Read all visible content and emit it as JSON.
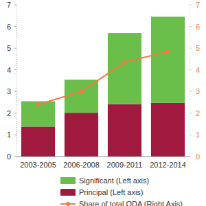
{
  "chart_data": {
    "type": "bar",
    "stacked": true,
    "legend": "bottom",
    "grid": false,
    "categories": [
      "2003-2005",
      "2006-2008",
      "2009-2011",
      "2012-2014"
    ],
    "ylim": [
      0,
      7
    ],
    "yticks": [
      0,
      1,
      2,
      3,
      4,
      5,
      6,
      7
    ],
    "y2lim": [
      0,
      7
    ],
    "y2ticks": [
      0,
      1,
      2,
      3,
      4,
      5,
      6,
      7
    ],
    "series": [
      {
        "name": "Principal (Left axis)",
        "color": "#a0193f",
        "values": [
          1.38,
          2.02,
          2.42,
          2.48
        ]
      },
      {
        "name": "Significant (Left axis)",
        "color": "#6abf4b",
        "values": [
          1.17,
          1.53,
          3.28,
          3.97
        ]
      },
      {
        "name": "Share of total ODA (Right Axis)",
        "color": "#f07c40",
        "type": "line",
        "marker": "circle",
        "axis": "y2",
        "values": [
          2.4,
          3.0,
          4.35,
          4.85
        ]
      }
    ]
  }
}
